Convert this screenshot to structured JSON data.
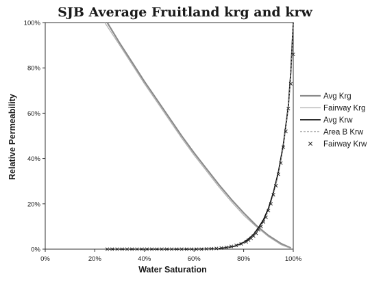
{
  "chart_data": {
    "type": "line",
    "title": "SJB Average Fruitland krg and krw",
    "xlabel": "Water Saturation",
    "ylabel": "Relative Permeability",
    "xlim": [
      0,
      100
    ],
    "ylim": [
      0,
      100
    ],
    "x_ticks": [
      "0%",
      "20%",
      "40%",
      "60%",
      "80%",
      "100%"
    ],
    "y_ticks": [
      "0%",
      "20%",
      "40%",
      "60%",
      "80%",
      "100%"
    ],
    "grid": false,
    "legend_position": "right",
    "series": [
      {
        "name": "Avg Krg",
        "color": "#8a8a8a",
        "x": [
          25,
          30,
          35,
          40,
          45,
          50,
          55,
          60,
          65,
          70,
          75,
          80,
          85,
          90,
          95,
          99
        ],
        "y": [
          100,
          91,
          82.5,
          74,
          66,
          58,
          50,
          42.5,
          35.5,
          28.5,
          22,
          16,
          10.5,
          6,
          2.5,
          0.5
        ]
      },
      {
        "name": "Fairway Krg",
        "color": "#b0b0b0",
        "x": [
          24,
          30,
          35,
          40,
          45,
          50,
          55,
          60,
          65,
          70,
          75,
          80,
          85,
          90,
          95,
          99
        ],
        "y": [
          100,
          90,
          81.5,
          73,
          65,
          57,
          49,
          41.5,
          34.5,
          27.5,
          21,
          15,
          10,
          5.5,
          2,
          0.3
        ]
      },
      {
        "name": "Avg Krw",
        "color": "#111111",
        "x": [
          25,
          30,
          40,
          50,
          60,
          65,
          70,
          72,
          75,
          77,
          80,
          82,
          84,
          86,
          88,
          90,
          92,
          94,
          96,
          98,
          99,
          100
        ],
        "y": [
          0,
          0,
          0,
          0,
          0,
          0.1,
          0.3,
          0.5,
          1,
          1.5,
          3,
          4.5,
          6.5,
          9.5,
          13,
          18,
          25,
          34,
          46,
          63,
          78,
          100
        ]
      },
      {
        "name": "Area B Krw",
        "color": "#9a9a9a",
        "x": [
          25,
          30,
          40,
          50,
          60,
          65,
          70,
          72,
          75,
          77,
          80,
          82,
          84,
          86,
          88,
          90,
          92,
          94,
          96,
          98,
          99,
          100
        ],
        "y": [
          0,
          0,
          0,
          0,
          0,
          0.1,
          0.2,
          0.4,
          0.8,
          1.3,
          2.5,
          4,
          6,
          8.5,
          12,
          17,
          24,
          33,
          45,
          62,
          77,
          100
        ]
      },
      {
        "name": "Fairway Krw",
        "color": "#222222",
        "x": [
          25,
          27,
          29,
          31,
          33,
          35,
          37,
          39,
          41,
          43,
          45,
          47,
          49,
          51,
          53,
          55,
          57,
          59,
          61,
          63,
          65,
          67,
          69,
          71,
          73,
          75,
          77,
          79,
          81,
          82,
          83,
          84,
          85,
          86,
          87,
          88,
          89,
          90,
          91,
          92,
          93,
          94,
          95,
          96,
          97,
          98,
          99,
          100
        ],
        "y": [
          0,
          0,
          0,
          0,
          0,
          0,
          0,
          0,
          0,
          0,
          0,
          0,
          0,
          0,
          0,
          0,
          0,
          0,
          0,
          0,
          0.1,
          0.2,
          0.3,
          0.5,
          0.8,
          1.2,
          1.7,
          2.3,
          3.2,
          4,
          4.8,
          5.8,
          7,
          8.5,
          10,
          12,
          14,
          17,
          20,
          24,
          28,
          33,
          38,
          45,
          52,
          62,
          73,
          86
        ]
      }
    ]
  }
}
